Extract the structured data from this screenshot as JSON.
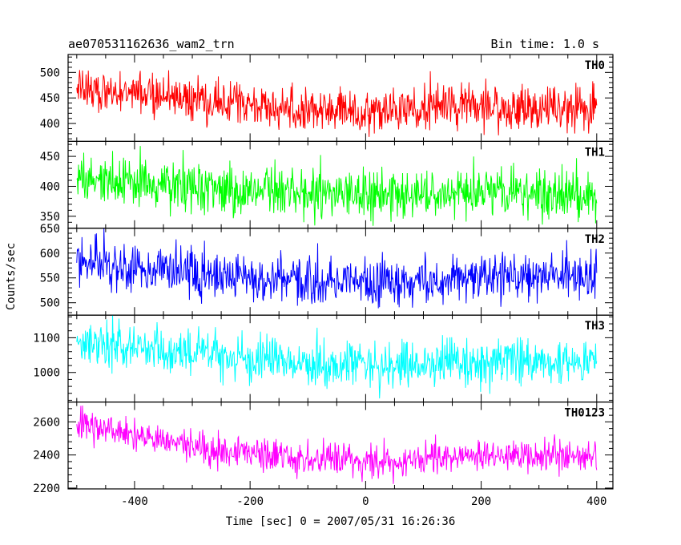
{
  "header": {
    "title": "ae070531162636_wam2_trn",
    "bin_time": "Bin time: 1.0 s"
  },
  "chart_data": {
    "type": "line",
    "title": "ae070531162636_wam2_trn",
    "subtitle": "Bin time: 1.0 s",
    "xlabel": "Time [sec] 0 = 2007/05/31 16:26:36",
    "ylabel": "Counts/sec",
    "xlim": [
      -515,
      428
    ],
    "xticks": [
      -400,
      -200,
      0,
      200,
      400
    ],
    "x_range_data": [
      -500,
      400
    ],
    "bin_time_sec": 1.0,
    "grid": false,
    "panels": [
      {
        "name": "TH0",
        "color": "#ff0000",
        "ylim": [
          365,
          535
        ],
        "yticks": [
          400,
          450,
          500
        ],
        "trend": [
          [
            -500,
            480
          ],
          [
            -450,
            462
          ],
          [
            -350,
            450
          ],
          [
            -200,
            435
          ],
          [
            -100,
            427
          ],
          [
            0,
            425
          ],
          [
            100,
            430
          ],
          [
            200,
            430
          ],
          [
            300,
            430
          ],
          [
            400,
            428
          ]
        ],
        "noise_sigma": 22
      },
      {
        "name": "TH1",
        "color": "#00ff00",
        "ylim": [
          330,
          475
        ],
        "yticks": [
          350,
          400,
          450
        ],
        "trend": [
          [
            -500,
            415
          ],
          [
            -400,
            408
          ],
          [
            -300,
            400
          ],
          [
            -200,
            392
          ],
          [
            -100,
            385
          ],
          [
            0,
            382
          ],
          [
            100,
            385
          ],
          [
            200,
            387
          ],
          [
            300,
            388
          ],
          [
            400,
            385
          ]
        ],
        "noise_sigma": 20
      },
      {
        "name": "TH2",
        "color": "#0000ff",
        "ylim": [
          475,
          650
        ],
        "yticks": [
          500,
          550,
          600,
          650
        ],
        "trend": [
          [
            -500,
            585
          ],
          [
            -400,
            570
          ],
          [
            -300,
            560
          ],
          [
            -200,
            550
          ],
          [
            -100,
            545
          ],
          [
            0,
            542
          ],
          [
            100,
            545
          ],
          [
            200,
            552
          ],
          [
            300,
            555
          ],
          [
            400,
            555
          ]
        ],
        "noise_sigma": 24
      },
      {
        "name": "TH3",
        "color": "#00ffff",
        "ylim": [
          915,
          1165
        ],
        "yticks": [
          1000,
          1100
        ],
        "trend": [
          [
            -500,
            1090
          ],
          [
            -400,
            1070
          ],
          [
            -300,
            1055
          ],
          [
            -200,
            1035
          ],
          [
            -100,
            1022
          ],
          [
            0,
            1018
          ],
          [
            100,
            1025
          ],
          [
            200,
            1030
          ],
          [
            300,
            1035
          ],
          [
            400,
            1030
          ]
        ],
        "noise_sigma": 32
      },
      {
        "name": "TH0123",
        "color": "#ff00ff",
        "ylim": [
          2195,
          2720
        ],
        "yticks": [
          2200,
          2400,
          2600
        ],
        "trend": [
          [
            -500,
            2585
          ],
          [
            -400,
            2530
          ],
          [
            -360,
            2500
          ],
          [
            -300,
            2450
          ],
          [
            -200,
            2400
          ],
          [
            -100,
            2370
          ],
          [
            0,
            2360
          ],
          [
            100,
            2380
          ],
          [
            200,
            2395
          ],
          [
            300,
            2400
          ],
          [
            400,
            2395
          ]
        ],
        "noise_sigma": 50
      }
    ]
  }
}
